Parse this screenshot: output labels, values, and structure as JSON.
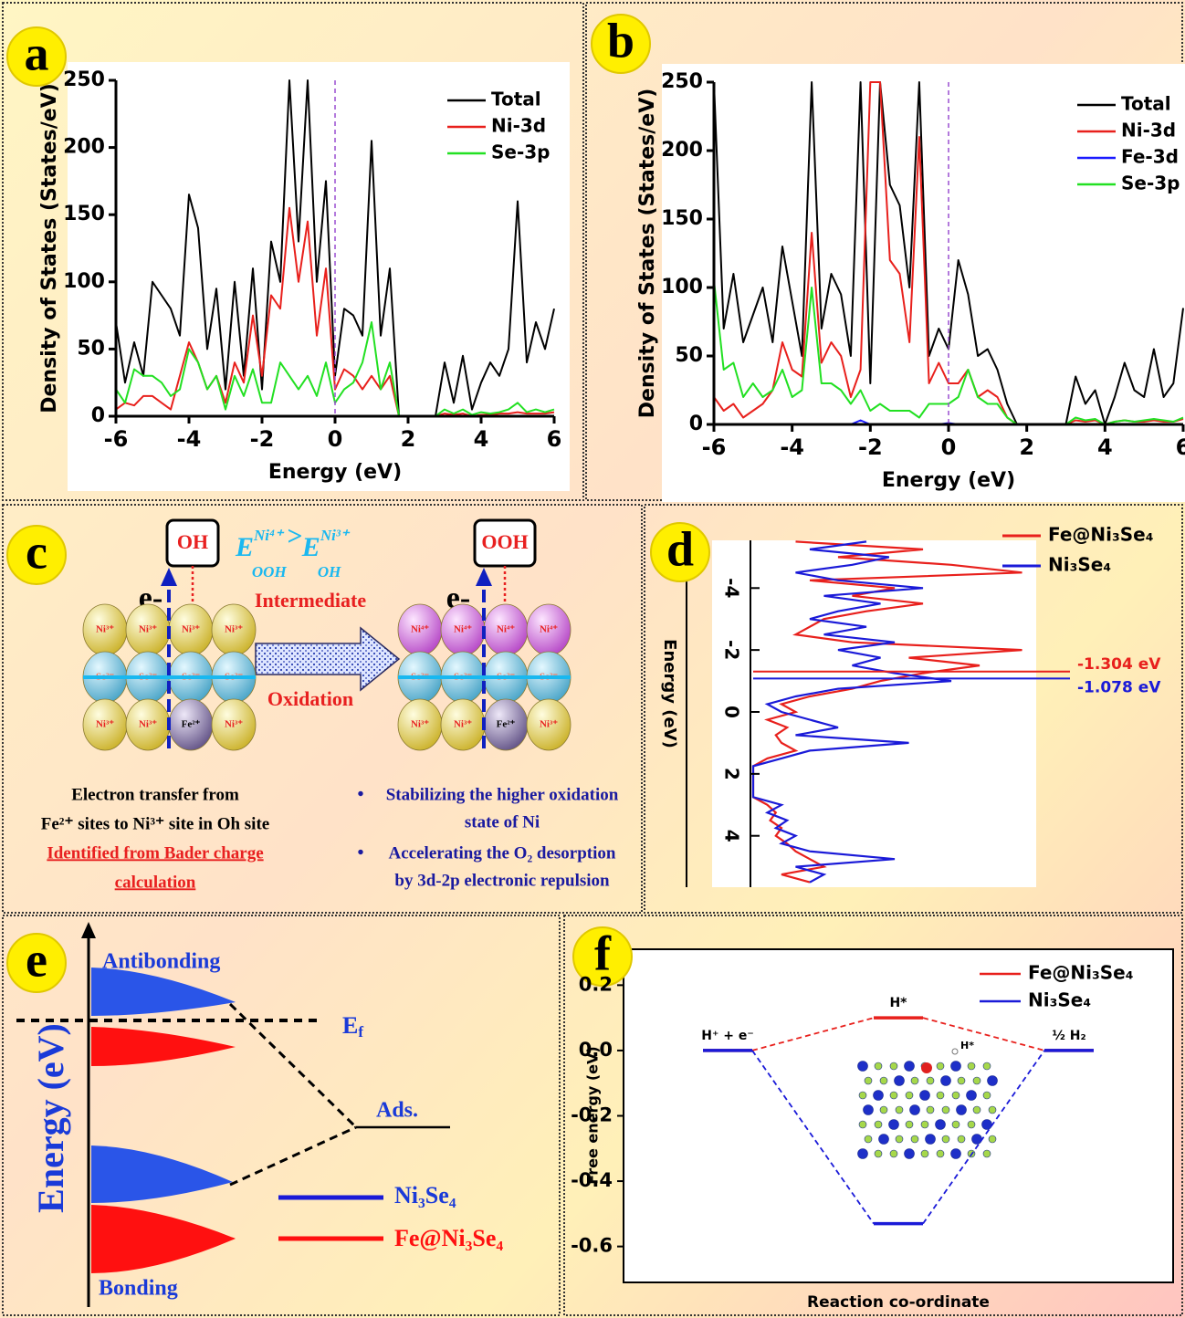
{
  "chart_data": [
    {
      "type": "line",
      "panel_label": "a",
      "xlabel": "Energy (eV)",
      "ylabel": "Density of States (States/eV)",
      "x": [
        -6,
        -5.75,
        -5.5,
        -5.25,
        -5,
        -4.75,
        -4.5,
        -4.25,
        -4,
        -3.75,
        -3.5,
        -3.25,
        -3,
        -2.75,
        -2.5,
        -2.25,
        -2,
        -1.75,
        -1.5,
        -1.25,
        -1,
        -0.75,
        -0.5,
        -0.25,
        0,
        0.25,
        0.5,
        0.75,
        1,
        1.25,
        1.5,
        1.75,
        2,
        2.25,
        2.5,
        2.75,
        3,
        3.25,
        3.5,
        3.75,
        4,
        4.25,
        4.5,
        4.75,
        5,
        5.25,
        5.5,
        5.75,
        6
      ],
      "series": [
        {
          "name": "Total",
          "color": "#000000",
          "values": [
            70,
            25,
            55,
            30,
            100,
            90,
            80,
            60,
            165,
            140,
            50,
            95,
            20,
            100,
            30,
            110,
            20,
            130,
            100,
            250,
            130,
            250,
            100,
            175,
            30,
            80,
            75,
            60,
            205,
            60,
            110,
            0,
            0,
            0,
            0,
            0,
            40,
            10,
            45,
            5,
            25,
            40,
            30,
            50,
            160,
            40,
            70,
            50,
            80
          ]
        },
        {
          "name": "Ni-3d",
          "color": "#e8201c",
          "values": [
            5,
            10,
            8,
            15,
            15,
            10,
            5,
            30,
            55,
            40,
            20,
            30,
            10,
            40,
            25,
            75,
            30,
            90,
            80,
            155,
            100,
            145,
            60,
            110,
            20,
            35,
            30,
            20,
            30,
            20,
            30,
            0,
            0,
            0,
            0,
            0,
            2,
            1,
            2,
            0,
            1,
            1,
            2,
            2,
            3,
            2,
            2,
            2,
            3
          ]
        },
        {
          "name": "Se-3p",
          "color": "#22e022",
          "values": [
            20,
            10,
            35,
            30,
            30,
            25,
            15,
            20,
            50,
            40,
            20,
            30,
            5,
            30,
            15,
            35,
            10,
            10,
            40,
            30,
            20,
            30,
            15,
            40,
            10,
            20,
            25,
            40,
            70,
            20,
            40,
            0,
            0,
            0,
            0,
            0,
            5,
            2,
            5,
            1,
            3,
            2,
            3,
            5,
            10,
            3,
            5,
            3,
            5
          ]
        }
      ],
      "xlim": [
        -6,
        6
      ],
      "xticks": [
        -6,
        -4,
        -2,
        0,
        2,
        4,
        6
      ],
      "ylim": [
        0,
        250
      ],
      "yticks": [
        0,
        50,
        100,
        150,
        200,
        250
      ],
      "vline": 0,
      "vline_color": "#9a4fd0",
      "legend": "upper right"
    },
    {
      "type": "line",
      "panel_label": "b",
      "xlabel": "Energy (eV)",
      "ylabel": "Density of States (States/eV)",
      "x": [
        -6,
        -5.75,
        -5.5,
        -5.25,
        -5,
        -4.75,
        -4.5,
        -4.25,
        -4,
        -3.75,
        -3.5,
        -3.25,
        -3,
        -2.75,
        -2.5,
        -2.25,
        -2,
        -1.75,
        -1.5,
        -1.25,
        -1,
        -0.75,
        -0.5,
        -0.25,
        0,
        0.25,
        0.5,
        0.75,
        1,
        1.25,
        1.5,
        1.75,
        2,
        2.25,
        2.5,
        2.75,
        3,
        3.25,
        3.5,
        3.75,
        4,
        4.25,
        4.5,
        4.75,
        5,
        5.25,
        5.5,
        5.75,
        6
      ],
      "series": [
        {
          "name": "Total",
          "color": "#000000",
          "values": [
            250,
            70,
            110,
            60,
            80,
            100,
            60,
            130,
            90,
            50,
            250,
            70,
            110,
            95,
            50,
            250,
            30,
            250,
            175,
            160,
            100,
            250,
            50,
            70,
            55,
            120,
            95,
            50,
            55,
            40,
            15,
            0,
            0,
            0,
            0,
            0,
            0,
            35,
            15,
            25,
            0,
            20,
            45,
            25,
            20,
            55,
            20,
            30,
            85
          ]
        },
        {
          "name": "Ni-3d",
          "color": "#e8201c",
          "values": [
            20,
            10,
            15,
            5,
            10,
            15,
            25,
            60,
            40,
            35,
            140,
            45,
            60,
            50,
            20,
            40,
            250,
            250,
            120,
            110,
            60,
            210,
            30,
            45,
            30,
            30,
            40,
            20,
            25,
            20,
            5,
            0,
            0,
            0,
            0,
            0,
            0,
            3,
            2,
            3,
            0,
            2,
            3,
            2,
            2,
            3,
            2,
            2,
            4
          ]
        },
        {
          "name": "Fe-3d",
          "color": "#1a1aff",
          "values": [
            0,
            0,
            0,
            0,
            0,
            0,
            0,
            0,
            0,
            0,
            0,
            0,
            0,
            0,
            0,
            3,
            0,
            0,
            0,
            0,
            0,
            0,
            0,
            0,
            1,
            0,
            0,
            0,
            0,
            0,
            0,
            0,
            0,
            0,
            0,
            0,
            0,
            0,
            0,
            0,
            0,
            0,
            0,
            0,
            0,
            0,
            0,
            0,
            0
          ]
        },
        {
          "name": "Se-3p",
          "color": "#22e022",
          "values": [
            105,
            40,
            45,
            20,
            30,
            20,
            25,
            40,
            20,
            25,
            100,
            30,
            30,
            25,
            15,
            25,
            10,
            15,
            10,
            10,
            10,
            5,
            15,
            15,
            15,
            20,
            40,
            20,
            15,
            15,
            5,
            0,
            0,
            0,
            0,
            0,
            0,
            5,
            3,
            4,
            0,
            2,
            3,
            2,
            3,
            4,
            3,
            2,
            5
          ]
        }
      ],
      "xlim": [
        -6,
        6
      ],
      "xticks": [
        -6,
        -4,
        -2,
        0,
        2,
        4,
        6
      ],
      "ylim": [
        0,
        250
      ],
      "yticks": [
        0,
        50,
        100,
        150,
        200,
        250
      ],
      "vline": 0,
      "vline_color": "#9a4fd0",
      "legend": "upper right"
    },
    {
      "type": "vertical_line",
      "panel_label": "d",
      "xlabel": "Energy (eV)",
      "x": [
        -5.5,
        -5.25,
        -5,
        -4.75,
        -4.5,
        -4.25,
        -4,
        -3.75,
        -3.5,
        -3.25,
        -3,
        -2.75,
        -2.5,
        -2.25,
        -2,
        -1.75,
        -1.5,
        -1.25,
        -1,
        -0.75,
        -0.5,
        -0.25,
        0,
        0.25,
        0.5,
        0.75,
        1,
        1.25,
        1.5,
        1.75,
        2,
        2.25,
        2.5,
        2.75,
        3,
        3.25,
        3.5,
        3.75,
        4,
        4.25,
        4.5,
        4.75,
        5,
        5.25,
        5.5
      ],
      "series": [
        {
          "name": "Fe@Ni₃Se₄",
          "color": "#e8201c",
          "values": [
            15,
            60,
            30,
            70,
            95,
            20,
            50,
            35,
            60,
            40,
            25,
            20,
            15,
            35,
            95,
            55,
            80,
            60,
            45,
            35,
            20,
            10,
            15,
            5,
            12,
            8,
            10,
            15,
            5,
            0,
            0,
            0,
            0,
            0,
            5,
            8,
            6,
            10,
            8,
            12,
            15,
            20,
            25,
            10,
            20
          ]
        },
        {
          "name": "Ni₃Se₄",
          "color": "#1a1ad8",
          "values": [
            40,
            20,
            48,
            35,
            15,
            30,
            60,
            25,
            45,
            30,
            20,
            40,
            25,
            50,
            30,
            45,
            35,
            50,
            70,
            30,
            15,
            5,
            10,
            20,
            30,
            15,
            55,
            20,
            10,
            0,
            0,
            0,
            0,
            0,
            10,
            5,
            12,
            8,
            15,
            10,
            20,
            50,
            15,
            25,
            20
          ]
        }
      ],
      "xlim": [
        -5.6,
        5.6
      ],
      "xticks": [
        -4,
        -2,
        0,
        2,
        4
      ],
      "ylim": [
        0,
        100
      ],
      "annotations": [
        {
          "value": -1.304,
          "label": "-1.304 eV",
          "color": "#e8201c"
        },
        {
          "value": -1.078,
          "label": "-1.078 eV",
          "color": "#1a1ad8"
        }
      ],
      "legend": "upper right"
    },
    {
      "type": "energy_levels",
      "panel_label": "f",
      "xlabel": "Reaction co-ordinate",
      "ylabel": "Free energy (eV)",
      "categories": [
        "H⁺ + e⁻",
        "H*",
        "½ H₂"
      ],
      "series": [
        {
          "name": "Fe@Ni₃Se₄",
          "color": "#e8201c",
          "values": [
            0,
            0.1,
            0
          ]
        },
        {
          "name": "Ni₃Se₄",
          "color": "#1a1ad8",
          "values": [
            0,
            -0.53,
            0
          ]
        }
      ],
      "ylim": [
        -0.71,
        0.31
      ],
      "yticks": [
        -0.6,
        -0.4,
        -0.2,
        {
          "value": 0,
          "label": "0.0"
        },
        0.2
      ],
      "inset_label": "H*",
      "legend": "upper right"
    }
  ],
  "diagram_c": {
    "panel_label": "c",
    "left_box": "OH",
    "right_box": "OOH",
    "equation": {
      "left": {
        "base": "E",
        "sup": "Ni⁴⁺",
        "sub": "OOH"
      },
      "relation": ">",
      "right": {
        "base": "E",
        "sup": "Ni³⁺",
        "sub": "OH"
      }
    },
    "electron_labels": [
      "e-",
      "e-"
    ],
    "arrow_top": "Intermediate",
    "arrow_bottom": "Oxidation",
    "left_lattice": [
      [
        "Ni³⁺",
        "Ni³⁺",
        "Ni³⁺",
        "Ni³⁺"
      ],
      [
        "Se²⁻",
        "Se²⁻",
        "Se²⁻",
        "Se²⁻"
      ],
      [
        "Ni³⁺",
        "Ni³⁺",
        "Fe²⁺",
        "Ni³⁺"
      ]
    ],
    "right_lattice": [
      [
        "Ni⁴⁺",
        "Ni⁴⁺",
        "Ni⁴⁺",
        "Ni⁴⁺"
      ],
      [
        "Se²⁻",
        "Se²⁻",
        "Se²⁻",
        "Se²⁻"
      ],
      [
        "Ni³⁺",
        "Ni³⁺",
        "Fe²⁺",
        "Ni³⁺"
      ]
    ],
    "left_text": [
      "Electron transfer from",
      "Fe²⁺ sites to Ni³⁺ site in Oh site"
    ],
    "left_note": [
      "Identified from Bader charge",
      "calculation"
    ],
    "bullets": [
      [
        "Stabilizing the higher oxidation",
        "state of Ni"
      ],
      [
        "Accelerating the O₂ desorption",
        "by 3d-2p electronic repulsion"
      ]
    ]
  },
  "diagram_e": {
    "panel_label": "e",
    "axis_label": "Energy (eV)",
    "antibonding": "Antibonding",
    "bonding": "Bonding",
    "fermi": {
      "base": "E",
      "sub": "f"
    },
    "adsorbate": "Ads.",
    "legend": [
      "Ni₃Se₄",
      "Fe@Ni₃Se₄"
    ]
  }
}
